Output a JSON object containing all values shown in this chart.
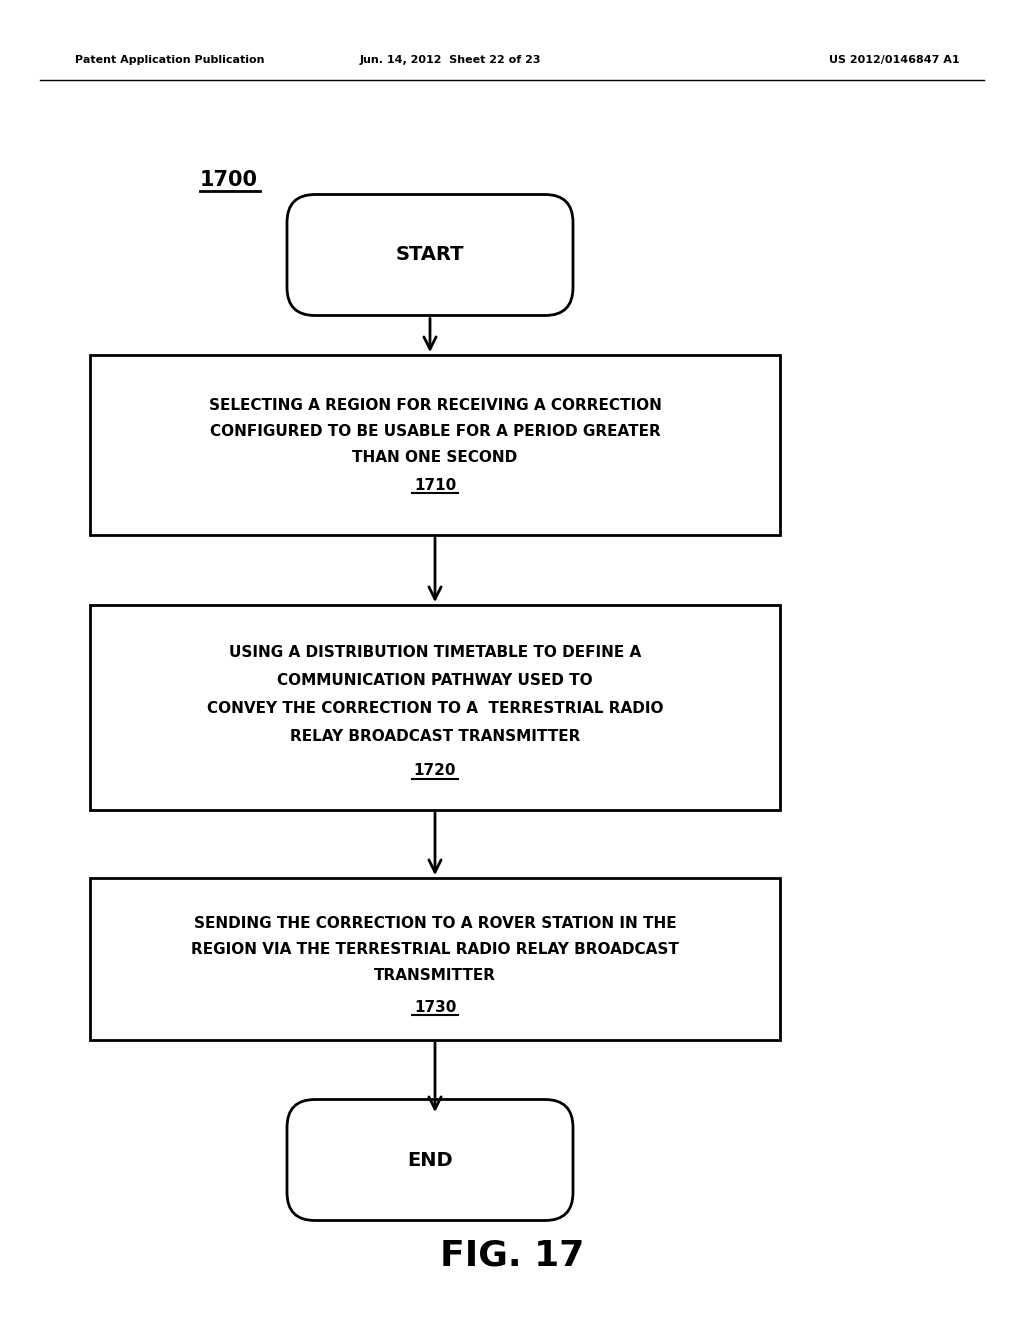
{
  "bg_color": "#ffffff",
  "header_left": "Patent Application Publication",
  "header_mid": "Jun. 14, 2012  Sheet 22 of 23",
  "header_right": "US 2012/0146847 A1",
  "diagram_label": "1700",
  "start_text": "START",
  "box1_lines": [
    "SELECTING A REGION FOR RECEIVING A CORRECTION",
    "CONFIGURED TO BE USABLE FOR A PERIOD GREATER",
    "THAN ONE SECOND"
  ],
  "box1_label": "1710",
  "box2_lines": [
    "USING A DISTRIBUTION TIMETABLE TO DEFINE A",
    "COMMUNICATION PATHWAY USED TO",
    "CONVEY THE CORRECTION TO A  TERRESTRIAL RADIO",
    "RELAY BROADCAST TRANSMITTER"
  ],
  "box2_label": "1720",
  "box3_lines": [
    "SENDING THE CORRECTION TO A ROVER STATION IN THE",
    "REGION VIA THE TERRESTRIAL RADIO RELAY BROADCAST",
    "TRANSMITTER"
  ],
  "box3_label": "1730",
  "end_text": "END",
  "fig_label": "FIG. 17",
  "arrow_color": "#000000",
  "box_edge_color": "#000000",
  "text_color": "#000000"
}
